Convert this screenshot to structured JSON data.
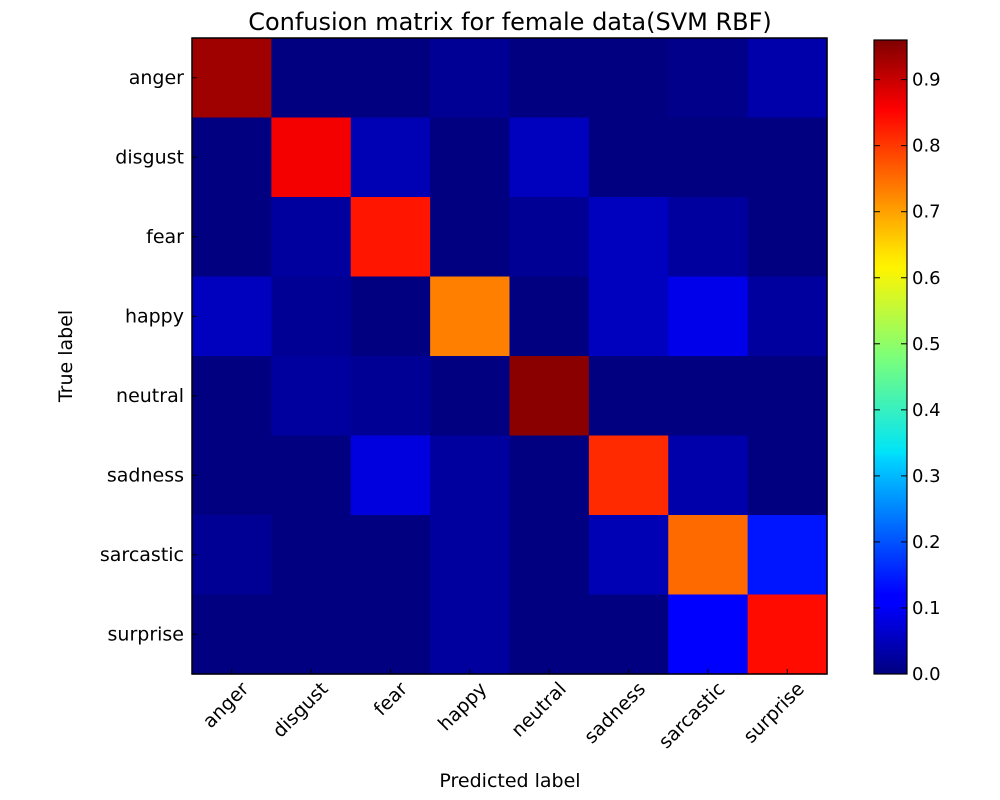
{
  "chart_data": {
    "type": "heatmap",
    "title": "Confusion matrix for female data(SVM RBF)",
    "xlabel": "Predicted label",
    "ylabel": "True label",
    "x_categories": [
      "anger",
      "disgust",
      "fear",
      "happy",
      "neutral",
      "sadness",
      "sarcastic",
      "surprise"
    ],
    "y_categories": [
      "anger",
      "disgust",
      "fear",
      "happy",
      "neutral",
      "sadness",
      "sarcastic",
      "surprise"
    ],
    "values": [
      [
        0.93,
        0.0,
        0.0,
        0.02,
        0.0,
        0.0,
        0.01,
        0.04
      ],
      [
        0.0,
        0.85,
        0.05,
        0.0,
        0.06,
        0.0,
        0.0,
        0.0
      ],
      [
        0.0,
        0.03,
        0.82,
        0.0,
        0.02,
        0.06,
        0.03,
        0.0
      ],
      [
        0.06,
        0.02,
        0.0,
        0.72,
        0.0,
        0.06,
        0.1,
        0.03
      ],
      [
        0.0,
        0.03,
        0.02,
        0.0,
        0.95,
        0.0,
        0.0,
        0.0
      ],
      [
        0.0,
        0.0,
        0.09,
        0.03,
        0.0,
        0.8,
        0.04,
        0.0
      ],
      [
        0.02,
        0.0,
        0.0,
        0.03,
        0.0,
        0.05,
        0.74,
        0.14
      ],
      [
        0.0,
        0.0,
        0.0,
        0.03,
        0.0,
        0.0,
        0.12,
        0.83
      ]
    ],
    "colormap": "jet",
    "vmin": 0.0,
    "vmax": 0.96,
    "colorbar_ticks": [
      "0.0",
      "0.1",
      "0.2",
      "0.3",
      "0.4",
      "0.5",
      "0.6",
      "0.7",
      "0.8",
      "0.9"
    ],
    "colorbar_tick_values": [
      0.0,
      0.1,
      0.2,
      0.3,
      0.4,
      0.5,
      0.6,
      0.7,
      0.8,
      0.9
    ]
  }
}
